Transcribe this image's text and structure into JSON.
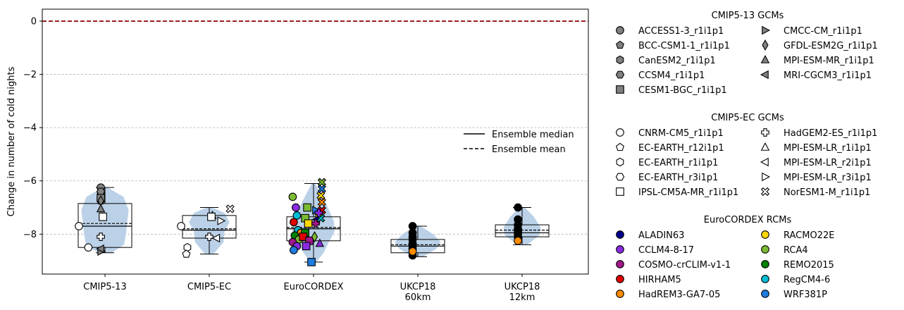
{
  "chart_data": {
    "type": "box-violin-scatter",
    "ylabel": "Change in number of cold nights",
    "ylim": [
      -9.5,
      0.45
    ],
    "yticks": [
      0,
      -2,
      -4,
      -6,
      -8
    ],
    "ytick_labels": [
      "0",
      "−2",
      "−4",
      "−6",
      "−8"
    ],
    "zero_line": {
      "value": 0,
      "color": "#8b0000",
      "style": "dashed"
    },
    "grid": {
      "axis": "y",
      "on": true,
      "style": "dashed"
    },
    "violin_color": "#b7cfe6",
    "groups": [
      {
        "label": [
          "CMIP5-13"
        ],
        "median": -7.7,
        "mean": -7.6,
        "q1": -8.5,
        "q3": -6.85,
        "whisker_low": -8.7,
        "whisker_high": -6.25
      },
      {
        "label": [
          "CMIP5-EC"
        ],
        "median": -7.85,
        "mean": -7.8,
        "q1": -8.15,
        "q3": -7.3,
        "whisker_low": -8.75,
        "whisker_high": -7.0
      },
      {
        "label": [
          "EuroCORDEX"
        ],
        "median": -7.8,
        "mean": -7.75,
        "q1": -8.25,
        "q3": -7.35,
        "whisker_low": -9.05,
        "whisker_high": -6.1
      },
      {
        "label": [
          "UKCP18",
          "60km"
        ],
        "median": -8.45,
        "mean": -8.4,
        "q1": -8.7,
        "q3": -8.2,
        "whisker_low": -8.85,
        "whisker_high": -7.7
      },
      {
        "label": [
          "UKCP18",
          "12km"
        ],
        "median": -7.95,
        "mean": -7.85,
        "q1": -8.1,
        "q3": -7.65,
        "whisker_low": -8.4,
        "whisker_high": -7.0
      }
    ],
    "points": [
      {
        "g": 0,
        "dx": -0.04,
        "y": -6.25,
        "m": "circle",
        "c": "#808080"
      },
      {
        "g": 0,
        "dx": -0.04,
        "y": -6.75,
        "m": "pentagon",
        "c": "#808080"
      },
      {
        "g": 0,
        "dx": -0.04,
        "y": -6.45,
        "m": "hexagon",
        "c": "#808080"
      },
      {
        "g": 0,
        "dx": -0.04,
        "y": -6.4,
        "m": "hexagon2",
        "c": "#808080"
      },
      {
        "g": 0,
        "dx": -0.04,
        "y": -6.65,
        "m": "square",
        "c": "#808080"
      },
      {
        "g": 0,
        "dx": -0.04,
        "y": -8.65,
        "m": "tri-right",
        "c": "#808080"
      },
      {
        "g": 0,
        "dx": -0.04,
        "y": -6.75,
        "m": "diamond",
        "c": "#808080"
      },
      {
        "g": 0,
        "dx": -0.04,
        "y": -7.05,
        "m": "tri-up",
        "c": "#808080"
      },
      {
        "g": 0,
        "dx": -0.04,
        "y": -8.55,
        "m": "tri-left",
        "c": "#808080"
      },
      {
        "g": 0,
        "dx": -0.25,
        "y": -7.7,
        "m": "circle",
        "c": "#ffffff"
      },
      {
        "g": 0,
        "dx": -0.16,
        "y": -8.5,
        "m": "circle",
        "c": "#ffffff"
      },
      {
        "g": 0,
        "dx": -0.02,
        "y": -7.35,
        "m": "square",
        "c": "#ffffff"
      },
      {
        "g": 0,
        "dx": -0.04,
        "y": -8.1,
        "m": "plus",
        "c": "#ffffff"
      },
      {
        "g": 1,
        "dx": -0.27,
        "y": -7.7,
        "m": "circle",
        "c": "#ffffff"
      },
      {
        "g": 1,
        "dx": -0.21,
        "y": -8.5,
        "m": "hexagon",
        "c": "#ffffff"
      },
      {
        "g": 1,
        "dx": -0.22,
        "y": -8.75,
        "m": "pentagon",
        "c": "#ffffff"
      },
      {
        "g": 1,
        "dx": 0.0,
        "y": -8.1,
        "m": "plus",
        "c": "#ffffff"
      },
      {
        "g": 1,
        "dx": 0.03,
        "y": -7.3,
        "m": "tri-up",
        "c": "#ffffff"
      },
      {
        "g": 1,
        "dx": 0.07,
        "y": -8.15,
        "m": "tri-left",
        "c": "#ffffff"
      },
      {
        "g": 1,
        "dx": 0.11,
        "y": -7.5,
        "m": "tri-right",
        "c": "#ffffff"
      },
      {
        "g": 1,
        "dx": 0.2,
        "y": -7.05,
        "m": "x",
        "c": "#ffffff"
      },
      {
        "g": 1,
        "dx": 0.02,
        "y": -7.35,
        "m": "square",
        "c": "#ffffff"
      },
      {
        "g": 2,
        "dx": -0.2,
        "y": -6.6,
        "m": "circle",
        "c": "#7cbb34"
      },
      {
        "g": 2,
        "dx": -0.17,
        "y": -7.0,
        "m": "circle",
        "c": "#8a2be2"
      },
      {
        "g": 2,
        "dx": -0.16,
        "y": -7.3,
        "m": "circle",
        "c": "#00bcd4"
      },
      {
        "g": 2,
        "dx": -0.19,
        "y": -7.55,
        "m": "circle",
        "c": "#e00000"
      },
      {
        "g": 2,
        "dx": -0.15,
        "y": -7.85,
        "m": "circle",
        "c": "#00b0c0"
      },
      {
        "g": 2,
        "dx": -0.12,
        "y": -7.95,
        "m": "circle",
        "c": "#ff8c00"
      },
      {
        "g": 2,
        "dx": -0.18,
        "y": -8.05,
        "m": "circle",
        "c": "#008000"
      },
      {
        "g": 2,
        "dx": -0.14,
        "y": -8.2,
        "m": "circle",
        "c": "#7cbb34"
      },
      {
        "g": 2,
        "dx": -0.2,
        "y": -8.3,
        "m": "circle",
        "c": "#a0188c"
      },
      {
        "g": 2,
        "dx": -0.16,
        "y": -8.45,
        "m": "circle",
        "c": "#8a2be2"
      },
      {
        "g": 2,
        "dx": -0.19,
        "y": -8.6,
        "m": "circle",
        "c": "#1e7be0"
      },
      {
        "g": 2,
        "dx": -0.08,
        "y": -7.4,
        "m": "square",
        "c": "#7cbb34"
      },
      {
        "g": 2,
        "dx": -0.06,
        "y": -7.0,
        "m": "square",
        "c": "#7cbb34"
      },
      {
        "g": 2,
        "dx": -0.05,
        "y": -7.6,
        "m": "square",
        "c": "#ffd700"
      },
      {
        "g": 2,
        "dx": -0.08,
        "y": -7.95,
        "m": "square",
        "c": "#008000"
      },
      {
        "g": 2,
        "dx": -0.1,
        "y": -8.1,
        "m": "square",
        "c": "#e00000"
      },
      {
        "g": 2,
        "dx": -0.04,
        "y": -8.25,
        "m": "square",
        "c": "#a0188c"
      },
      {
        "g": 2,
        "dx": -0.07,
        "y": -8.45,
        "m": "square",
        "c": "#8a2be2"
      },
      {
        "g": 2,
        "dx": -0.02,
        "y": -9.05,
        "m": "square",
        "c": "#1e7be0"
      },
      {
        "g": 2,
        "dx": 0.02,
        "y": -7.1,
        "m": "tri-right",
        "c": "#1e7be0"
      },
      {
        "g": 2,
        "dx": 0.05,
        "y": -7.3,
        "m": "tri-right",
        "c": "#ffd700"
      },
      {
        "g": 2,
        "dx": 0.03,
        "y": -7.45,
        "m": "tri-left",
        "c": "#00008b"
      },
      {
        "g": 2,
        "dx": 0.01,
        "y": -8.1,
        "m": "diamond",
        "c": "#7cbb34"
      },
      {
        "g": 2,
        "dx": 0.06,
        "y": -8.35,
        "m": "tri-up",
        "c": "#8a2be2"
      },
      {
        "g": 2,
        "dx": 0.08,
        "y": -6.05,
        "m": "x",
        "c": "#7cbb34"
      },
      {
        "g": 2,
        "dx": 0.08,
        "y": -6.3,
        "m": "x",
        "c": "#1e7be0"
      },
      {
        "g": 2,
        "dx": 0.07,
        "y": -6.55,
        "m": "x",
        "c": "#ffd700"
      },
      {
        "g": 2,
        "dx": 0.08,
        "y": -6.8,
        "m": "x",
        "c": "#ff8c00"
      },
      {
        "g": 2,
        "dx": 0.08,
        "y": -7.1,
        "m": "x",
        "c": "#e00000"
      },
      {
        "g": 2,
        "dx": 0.07,
        "y": -7.4,
        "m": "x",
        "c": "#00b0c0"
      },
      {
        "g": 2,
        "dx": 0.05,
        "y": -7.2,
        "m": "plus",
        "c": "#8a2be2"
      },
      {
        "g": 2,
        "dx": 0.02,
        "y": -7.6,
        "m": "plus",
        "c": "#a0188c"
      },
      {
        "g": 3,
        "dx": -0.05,
        "y": -7.7,
        "m": "circle",
        "c": "#000000"
      },
      {
        "g": 3,
        "dx": -0.05,
        "y": -7.95,
        "m": "circle",
        "c": "#000000"
      },
      {
        "g": 3,
        "dx": -0.05,
        "y": -8.1,
        "m": "circle",
        "c": "#000000"
      },
      {
        "g": 3,
        "dx": -0.05,
        "y": -8.2,
        "m": "circle",
        "c": "#000000"
      },
      {
        "g": 3,
        "dx": -0.05,
        "y": -8.35,
        "m": "circle",
        "c": "#000000"
      },
      {
        "g": 3,
        "dx": -0.05,
        "y": -8.45,
        "m": "circle",
        "c": "#000000"
      },
      {
        "g": 3,
        "dx": -0.05,
        "y": -8.55,
        "m": "circle",
        "c": "#000000"
      },
      {
        "g": 3,
        "dx": -0.05,
        "y": -8.8,
        "m": "circle",
        "c": "#000000"
      },
      {
        "g": 3,
        "dx": -0.05,
        "y": -8.65,
        "m": "circle",
        "c": "#ff8c00"
      },
      {
        "g": 4,
        "dx": -0.04,
        "y": -7.0,
        "m": "circle",
        "c": "#000000"
      },
      {
        "g": 4,
        "dx": -0.04,
        "y": -7.45,
        "m": "circle",
        "c": "#000000"
      },
      {
        "g": 4,
        "dx": -0.04,
        "y": -7.65,
        "m": "circle",
        "c": "#000000"
      },
      {
        "g": 4,
        "dx": -0.04,
        "y": -7.8,
        "m": "circle",
        "c": "#000000"
      },
      {
        "g": 4,
        "dx": -0.04,
        "y": -7.9,
        "m": "circle",
        "c": "#000000"
      },
      {
        "g": 4,
        "dx": -0.04,
        "y": -8.0,
        "m": "circle",
        "c": "#000000"
      },
      {
        "g": 4,
        "dx": -0.04,
        "y": -8.1,
        "m": "circle",
        "c": "#000000"
      },
      {
        "g": 4,
        "dx": -0.04,
        "y": -8.25,
        "m": "circle",
        "c": "#ff8c00"
      }
    ],
    "stat_legend": [
      {
        "label": "Ensemble median",
        "style": "solid"
      },
      {
        "label": "Ensemble mean",
        "style": "dashed"
      }
    ],
    "legend_sections": [
      {
        "title": "CMIP5-13 GCMs",
        "entries": [
          {
            "label": "ACCESS1-3_r1i1p1",
            "m": "circle",
            "c": "#808080"
          },
          {
            "label": "CMCC-CM_r1i1p1",
            "m": "tri-right",
            "c": "#808080"
          },
          {
            "label": "BCC-CSM1-1_r1i1p1",
            "m": "pentagon",
            "c": "#808080"
          },
          {
            "label": "GFDL-ESM2G_r1i1p1",
            "m": "diamond",
            "c": "#808080"
          },
          {
            "label": "CanESM2_r1i1p1",
            "m": "hexagon",
            "c": "#808080"
          },
          {
            "label": "MPI-ESM-MR_r1i1p1",
            "m": "tri-up",
            "c": "#808080"
          },
          {
            "label": "CCSM4_r1i1p1",
            "m": "hexagon2",
            "c": "#808080"
          },
          {
            "label": "MRI-CGCM3_r1i1p1",
            "m": "tri-left",
            "c": "#808080"
          },
          {
            "label": "CESM1-BGC_r1i1p1",
            "m": "square",
            "c": "#808080"
          }
        ]
      },
      {
        "title": "CMIP5-EC GCMs",
        "entries": [
          {
            "label": "CNRM-CM5_r1i1p1",
            "m": "circle",
            "c": "#ffffff"
          },
          {
            "label": "HadGEM2-ES_r1i1p1",
            "m": "plus",
            "c": "#ffffff"
          },
          {
            "label": "EC-EARTH_r12i1p1",
            "m": "pentagon",
            "c": "#ffffff"
          },
          {
            "label": "MPI-ESM-LR_r1i1p1",
            "m": "tri-up",
            "c": "#ffffff"
          },
          {
            "label": "EC-EARTH_r1i1p1",
            "m": "hexagon",
            "c": "#ffffff"
          },
          {
            "label": "MPI-ESM-LR_r2i1p1",
            "m": "tri-left",
            "c": "#ffffff"
          },
          {
            "label": "EC-EARTH_r3i1p1",
            "m": "hexagon2",
            "c": "#ffffff"
          },
          {
            "label": "MPI-ESM-LR_r3i1p1",
            "m": "tri-right",
            "c": "#ffffff"
          },
          {
            "label": "IPSL-CM5A-MR_r1i1p1",
            "m": "square",
            "c": "#ffffff"
          },
          {
            "label": "NorESM1-M_r1i1p1",
            "m": "x",
            "c": "#ffffff"
          }
        ]
      },
      {
        "title": "EuroCORDEX RCMs",
        "entries": [
          {
            "label": "ALADIN63",
            "m": "circle",
            "c": "#00008b"
          },
          {
            "label": "RACMO22E",
            "m": "circle",
            "c": "#ffd700"
          },
          {
            "label": "CCLM4-8-17",
            "m": "circle",
            "c": "#8a2be2"
          },
          {
            "label": "RCA4",
            "m": "circle",
            "c": "#7cbb34"
          },
          {
            "label": "COSMO-crCLIM-v1-1",
            "m": "circle",
            "c": "#a0188c"
          },
          {
            "label": "REMO2015",
            "m": "circle",
            "c": "#008000"
          },
          {
            "label": "HIRHAM5",
            "m": "circle",
            "c": "#e00000"
          },
          {
            "label": "RegCM4-6",
            "m": "circle",
            "c": "#00bcd4"
          },
          {
            "label": "HadREM3-GA7-05",
            "m": "circle",
            "c": "#ff8c00"
          },
          {
            "label": "WRF381P",
            "m": "circle",
            "c": "#1e7be0"
          }
        ]
      }
    ]
  }
}
